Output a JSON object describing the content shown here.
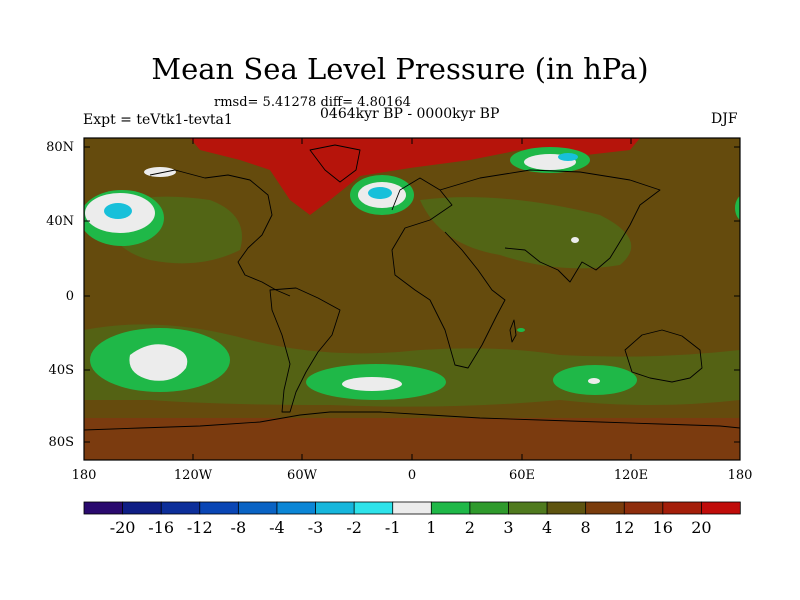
{
  "title": "Mean Sea Level Pressure (in hPa)",
  "stats": "rmsd= 5.41278  diff= 4.80164",
  "period": "0464kyr BP - 0000kyr BP",
  "experiment": "Expt = teVtk1-tevta1",
  "season": "DJF",
  "lat_ticks": [
    "80N",
    "40N",
    "0",
    "40S",
    "80S"
  ],
  "lon_ticks": [
    "180",
    "120W",
    "60W",
    "0",
    "60E",
    "120E",
    "180"
  ],
  "colorbar": {
    "labels": [
      "-20",
      "-16",
      "-12",
      "-8",
      "-4",
      "-3",
      "-2",
      "-1",
      "1",
      "2",
      "3",
      "4",
      "8",
      "12",
      "16",
      "20"
    ],
    "colors": [
      "#2a0a6e",
      "#0f1e85",
      "#0d2f9a",
      "#0a46b5",
      "#0a63c4",
      "#0b86d6",
      "#16b6dc",
      "#2ee3ea",
      "#ececec",
      "#1fb848",
      "#2f9a2c",
      "#4f7a1e",
      "#5e5410",
      "#7a3c0c",
      "#8e2d0c",
      "#a41e0a",
      "#c00c0a"
    ]
  },
  "colors": {
    "background_field": "#654b0d",
    "high_anomaly": "#b6140b",
    "mid_anomaly": "#8a3010",
    "slight_anomaly": "#4d6c18",
    "low_anomaly": "#1fb848",
    "near_zero": "#ececec",
    "negative": "#18c0da",
    "coastline": "#000000"
  }
}
